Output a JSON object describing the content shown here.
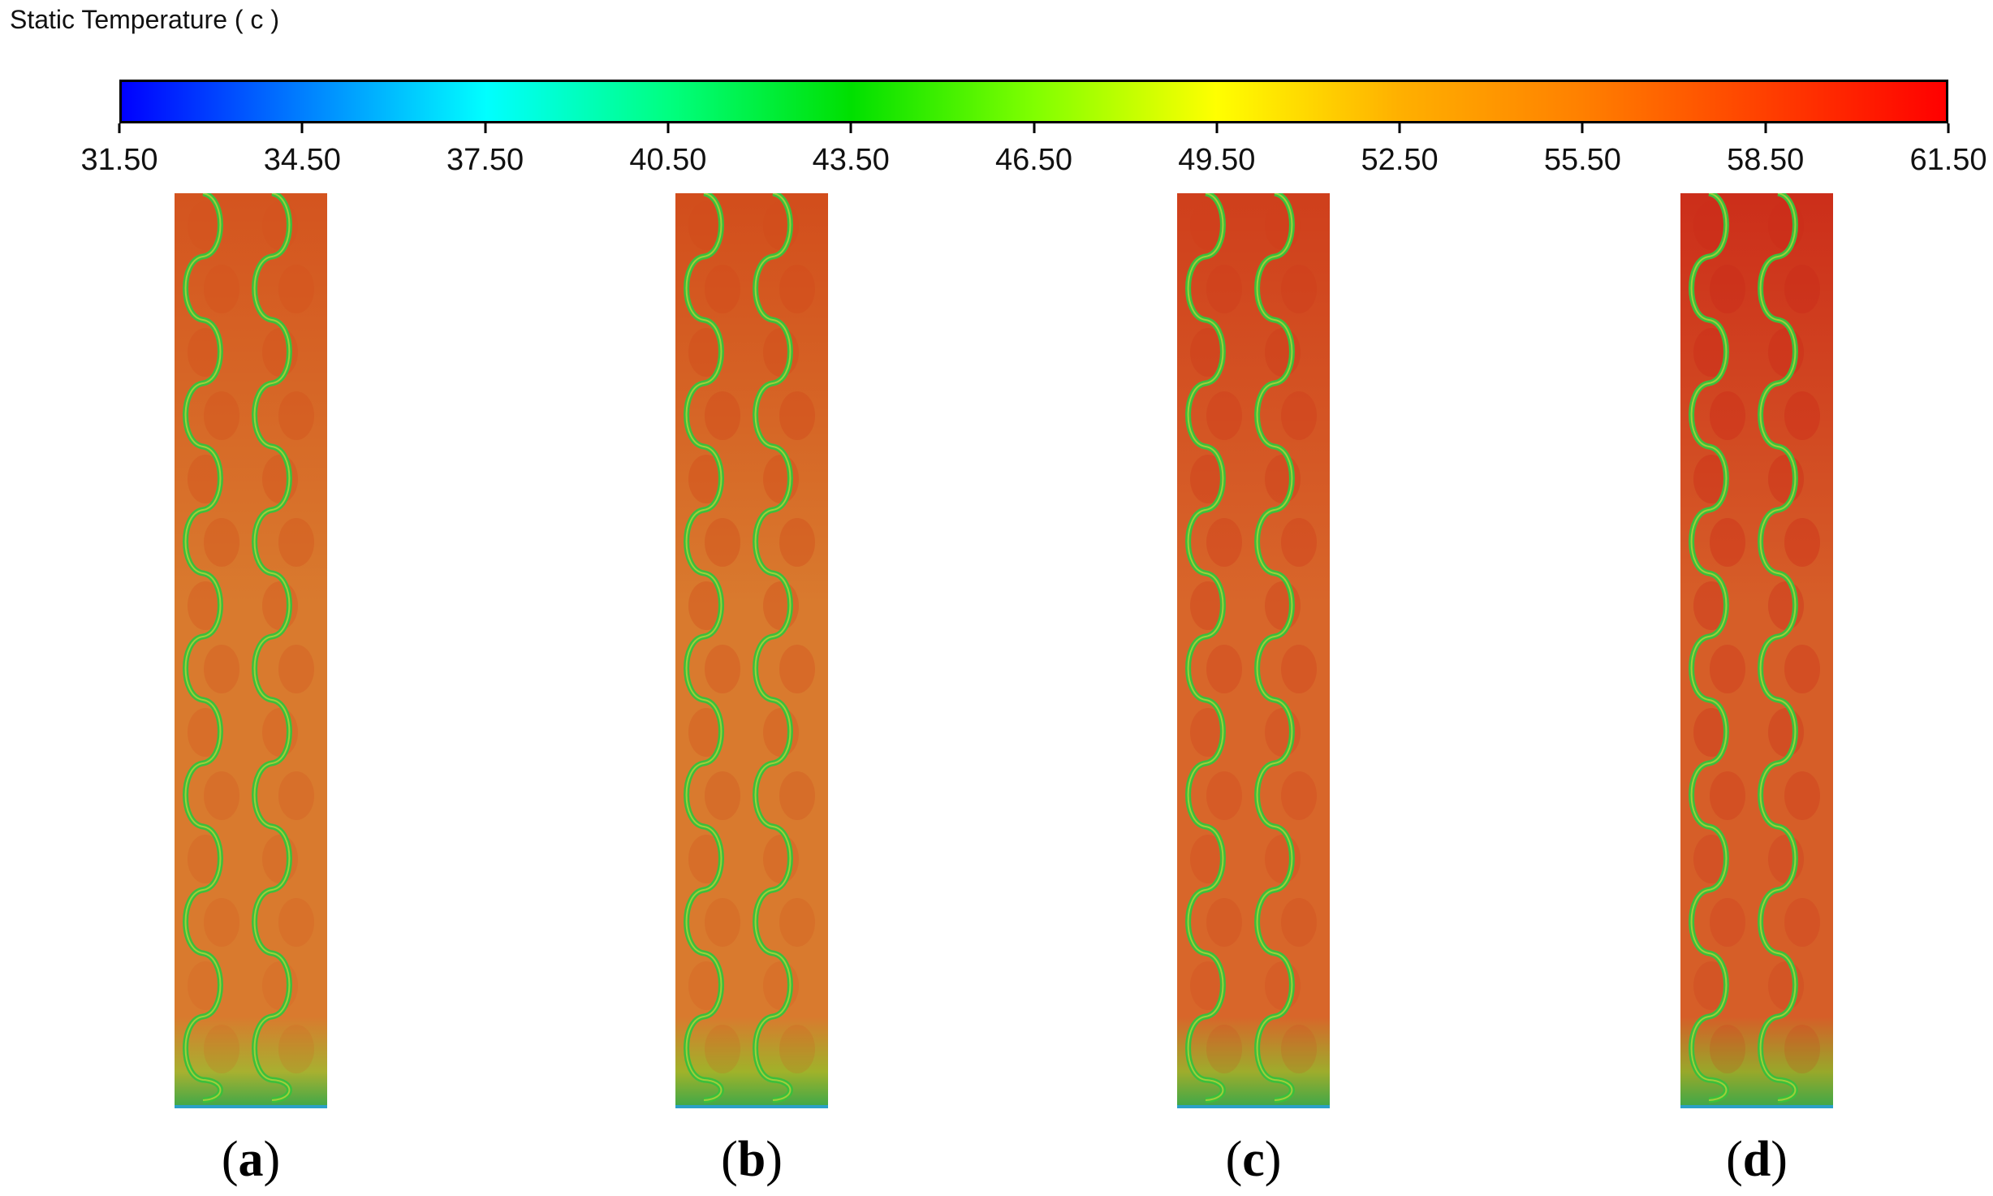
{
  "legend": {
    "title": "Static Temperature ( c )",
    "ticks": [
      "31.50",
      "34.50",
      "37.50",
      "40.50",
      "43.50",
      "46.50",
      "49.50",
      "52.50",
      "55.50",
      "58.50",
      "61.50"
    ],
    "range": [
      31.5,
      61.5
    ],
    "colormap": [
      "#0000ff",
      "#0080ff",
      "#00ffff",
      "#00ff80",
      "#00e000",
      "#80ff00",
      "#ffff00",
      "#ffb000",
      "#ff8000",
      "#ff4000",
      "#ff0000"
    ]
  },
  "panels": [
    {
      "label": "a",
      "body_color": "#d97a2e",
      "hot_color": "#d4541f",
      "bottom_color": "#a8b030"
    },
    {
      "label": "b",
      "body_color": "#d97a2e",
      "hot_color": "#d24d1c",
      "bottom_color": "#a0b22a"
    },
    {
      "label": "c",
      "body_color": "#d8662a",
      "hot_color": "#cf3f1c",
      "bottom_color": "#9eac2c"
    },
    {
      "label": "d",
      "body_color": "#d65e28",
      "hot_color": "#cc2e1a",
      "bottom_color": "#98a82a"
    }
  ],
  "channel_color": "#3cbf3c"
}
